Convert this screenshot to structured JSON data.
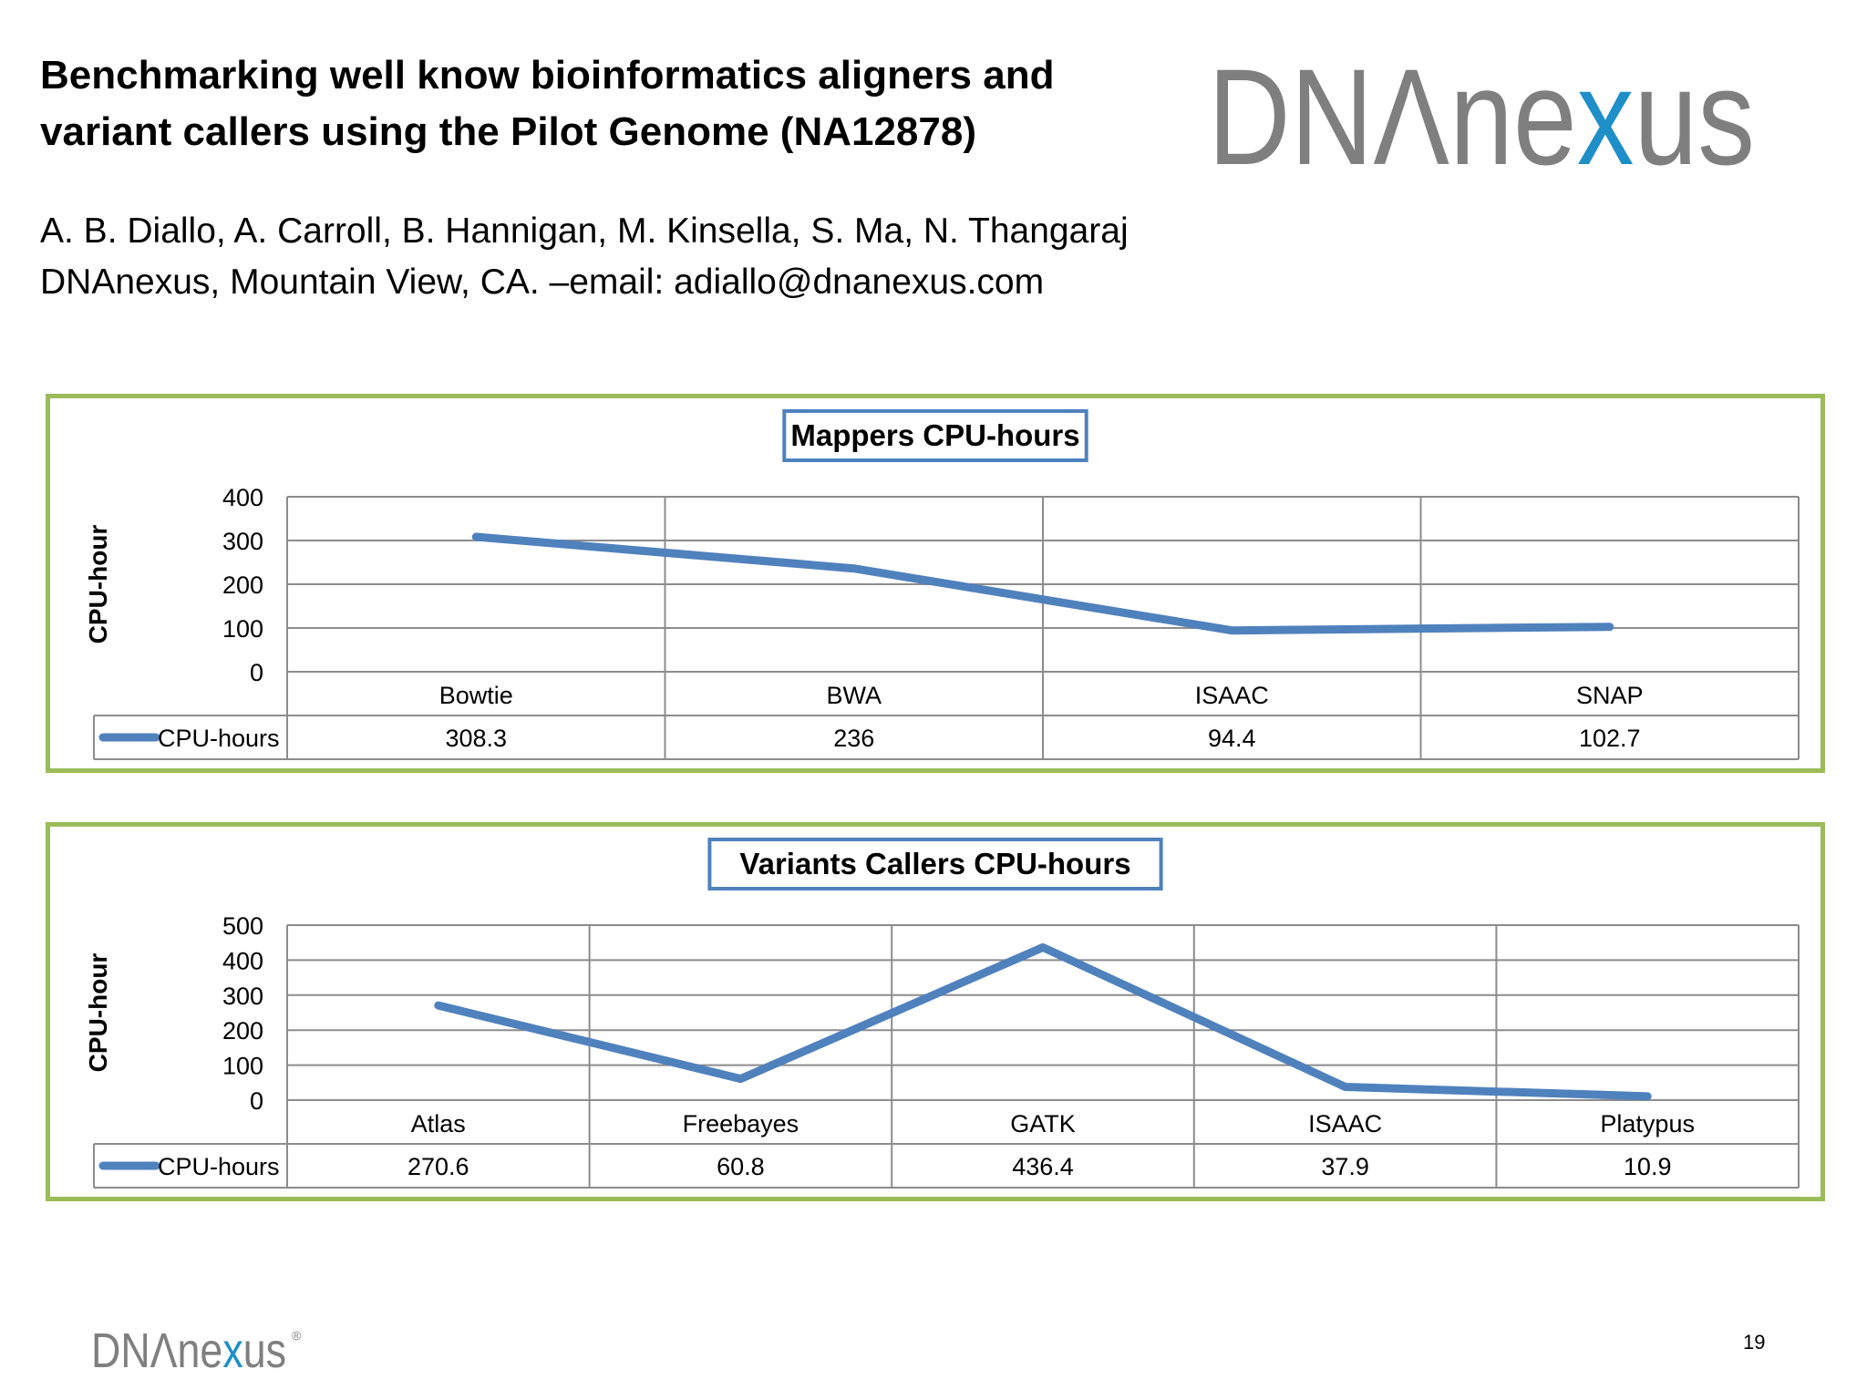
{
  "title_lines": [
    "Benchmarking well know bioinformatics aligners and",
    "variant callers using the Pilot Genome (NA12878)"
  ],
  "authors_lines": [
    "A. B. Diallo, A. Carroll, B. Hannigan, M. Kinsella, S. Ma,  N. Thangaraj",
    "DNAnexus, Mountain View, CA. –email: adiallo@dnanexus.com"
  ],
  "logo": {
    "gray_part": "DNΛne",
    "x_part": "x",
    "tail_part": "us",
    "registered": "®",
    "colors": {
      "gray": "#7f7f7f",
      "x_blue": "#1e8fc8",
      "x_green": "#8cc63f"
    }
  },
  "page_number": "19",
  "chart_data": [
    {
      "type": "line",
      "title": "Mappers CPU-hours",
      "ylabel": "CPU-hour",
      "categories": [
        "Bowtie",
        "BWA",
        "ISAAC",
        "SNAP"
      ],
      "series": [
        {
          "name": "CPU-hours",
          "values": [
            308.3,
            236,
            94.4,
            102.7
          ],
          "value_labels": [
            "308.3",
            "236",
            "94.4",
            "102.7"
          ]
        }
      ],
      "ylim": [
        0,
        400
      ],
      "yticks": [
        0,
        100,
        200,
        300,
        400
      ],
      "grid": true,
      "legend": "data-table",
      "line_color": "#4f81bd"
    },
    {
      "type": "line",
      "title": "Variants Callers CPU-hours",
      "ylabel": "CPU-hour",
      "categories": [
        "Atlas",
        "Freebayes",
        "GATK",
        "ISAAC",
        "Platypus"
      ],
      "series": [
        {
          "name": "CPU-hours",
          "values": [
            270.6,
            60.8,
            436.4,
            37.9,
            10.9
          ],
          "value_labels": [
            "270.6",
            "60.8",
            "436.4",
            "37.9",
            "10.9"
          ]
        }
      ],
      "ylim": [
        0,
        500
      ],
      "yticks": [
        0,
        100,
        200,
        300,
        400,
        500
      ],
      "grid": true,
      "legend": "data-table",
      "line_color": "#4f81bd"
    }
  ]
}
